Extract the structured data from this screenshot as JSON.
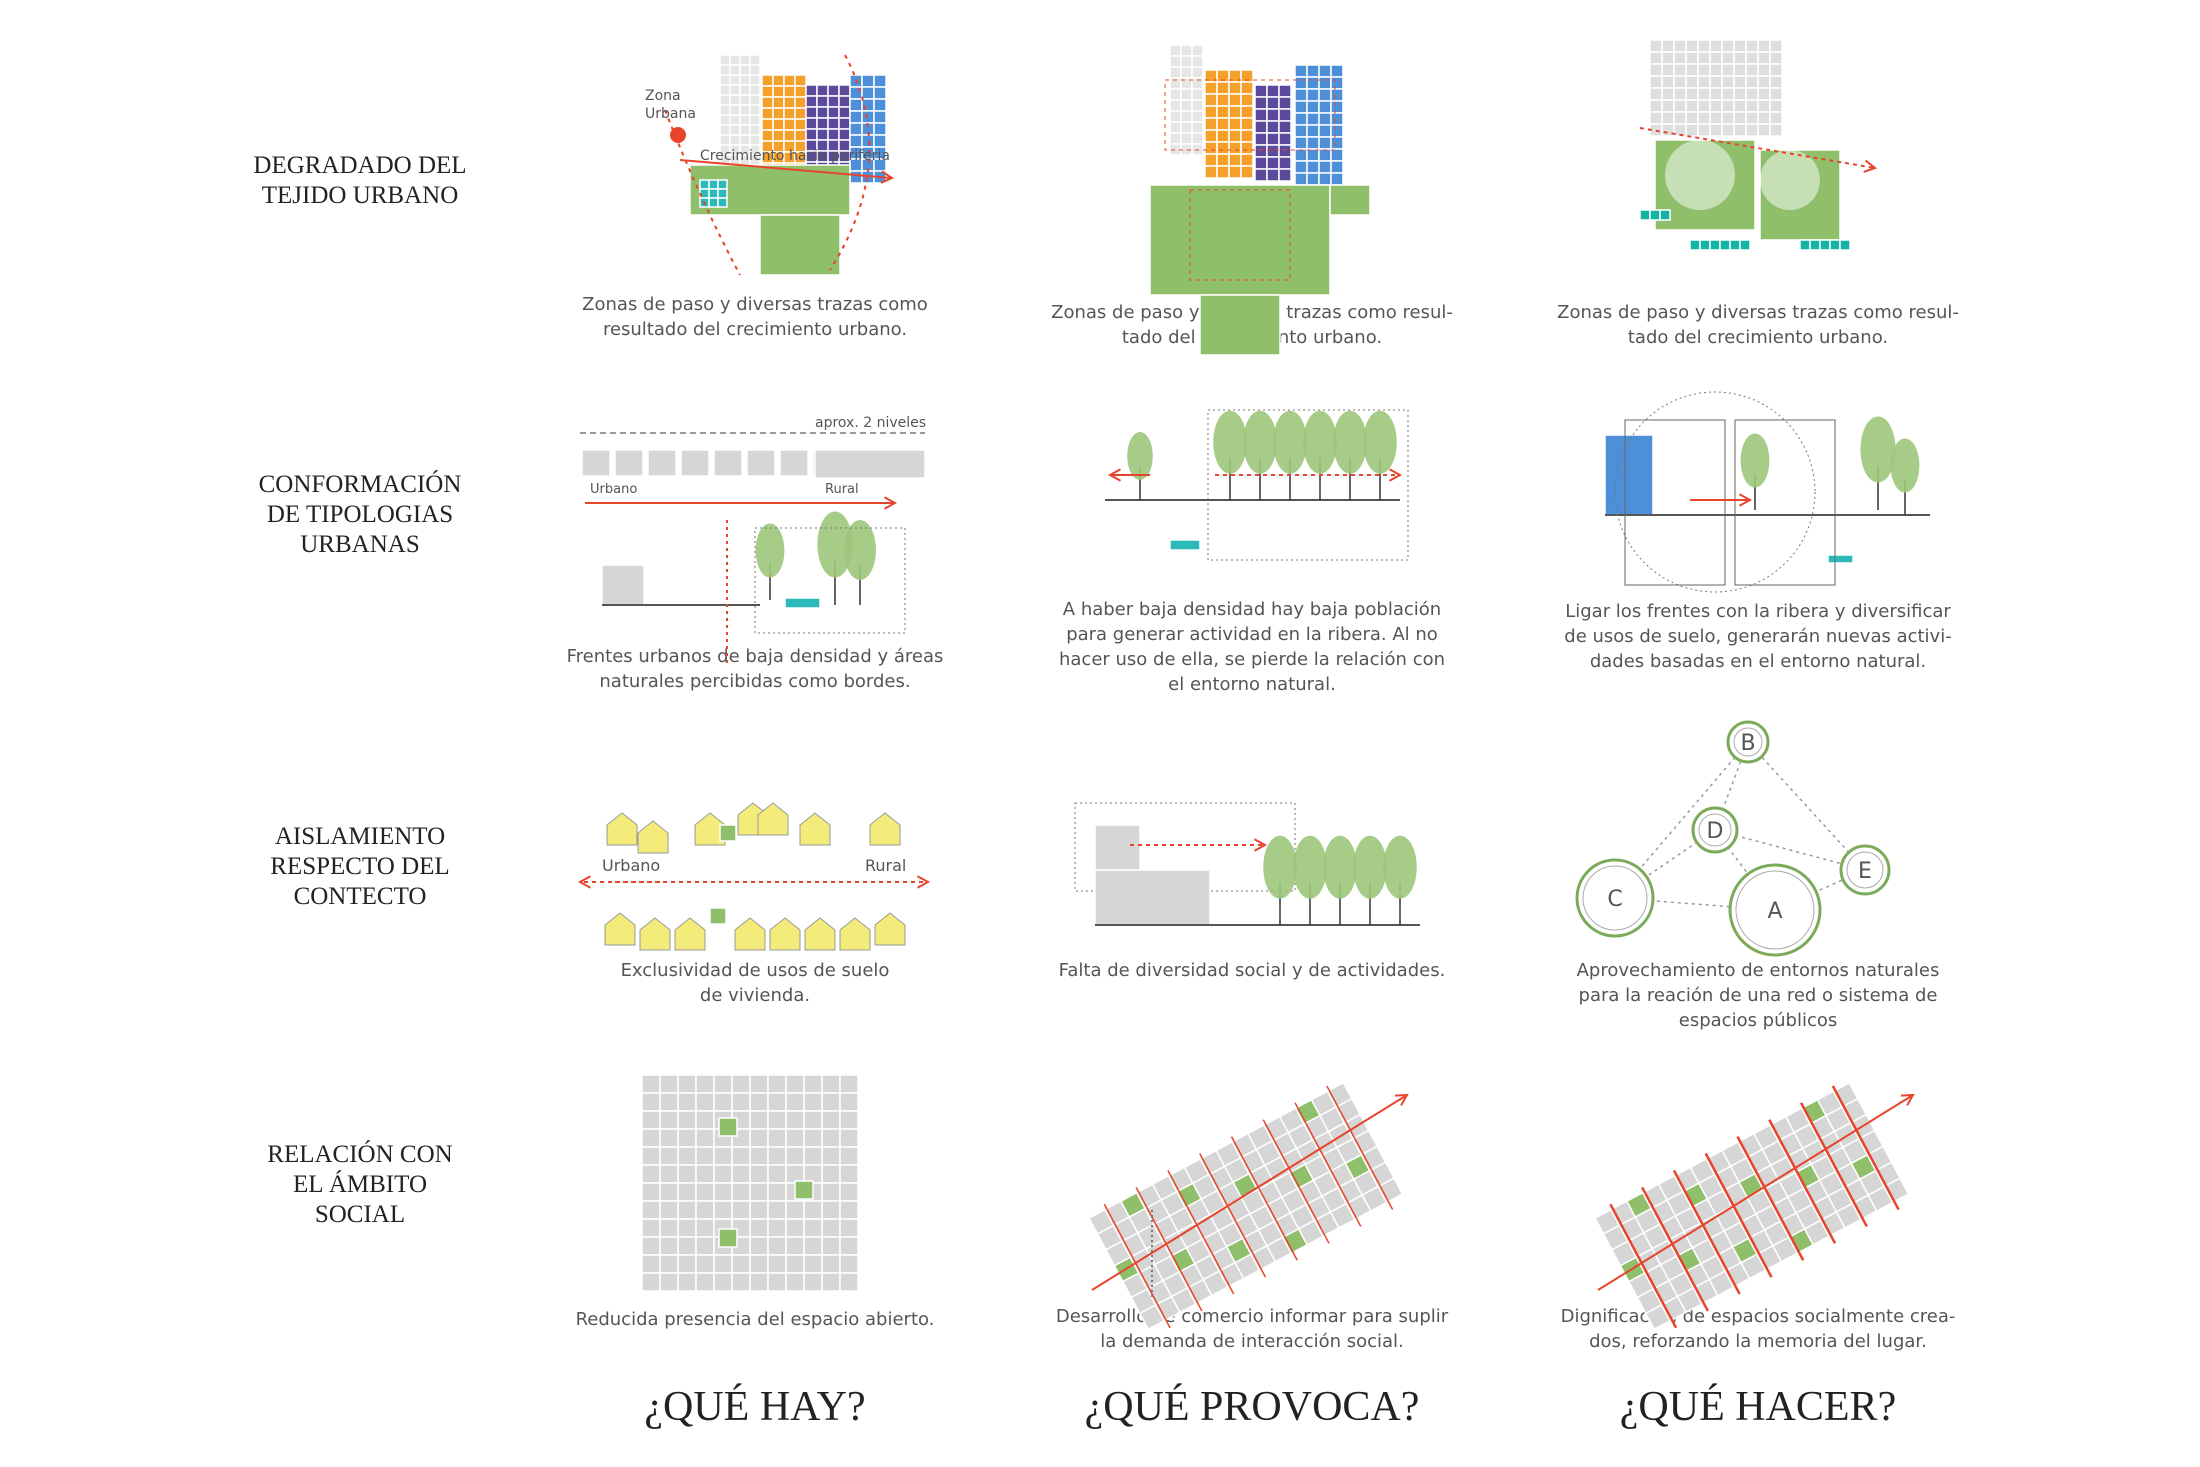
{
  "row_labels": [
    [
      "DEGRADADO DEL",
      "TEJIDO URBANO"
    ],
    [
      "CONFORMACIÓN",
      "DE TIPOLOGIAS",
      "URBANAS"
    ],
    [
      "AISLAMIENTO",
      "RESPECTO DEL",
      "CONTECTO"
    ],
    [
      "RELACIÓN CON",
      "EL ÁMBITO",
      "SOCIAL"
    ]
  ],
  "captions": [
    [
      [
        "Zonas de paso y diversas trazas como",
        "resultado del crecimiento urbano."
      ],
      [
        "Zonas de paso y diversas trazas como resul-",
        "tado del crecimiento urbano."
      ],
      [
        "Zonas de paso y diversas trazas como resul-",
        "tado del crecimiento urbano."
      ]
    ],
    [
      [
        "Frentes urbanos de baja densidad y áreas",
        "naturales percibidas como bordes."
      ],
      [
        "A haber baja densidad hay baja población",
        "para generar actividad en la ribera. Al no",
        "hacer uso de ella, se pierde la relación con",
        "el entorno natural."
      ],
      [
        "Ligar los frentes con la ribera y diversificar",
        "de usos de suelo, generarán nuevas activi-",
        "dades basadas en el entorno natural."
      ]
    ],
    [
      [
        "Exclusividad de usos de suelo",
        "de vivienda."
      ],
      [
        "Falta de diversidad social y de actividades."
      ],
      [
        "Aprovechamiento de entornos naturales",
        "para la reación de una red o sistema de",
        "espacios públicos"
      ]
    ],
    [
      [
        "Reducida presencia del espacio abierto."
      ],
      [
        "Desarrollo de comercio informar para suplir",
        "la demanda de interacción social."
      ],
      [
        "Dignificación de espacios socialmente crea-",
        "dos, reforzando la memoria del lugar."
      ]
    ]
  ],
  "column_headers": [
    "¿QUÉ HAY?",
    "¿QUÉ PROVOCA?",
    "¿QUÉ HACER?"
  ],
  "diagram_labels": {
    "zona_urbana": [
      "Zona",
      "Urbana"
    ],
    "crecimiento": "Crecimiento hacia periferia",
    "niveles": "aprox. 2 niveles",
    "urbano_1": "Urbano",
    "rural_1": "Rural",
    "urbano_2": "Urbano",
    "rural_2": "Rural",
    "nodes": [
      "B",
      "D",
      "E",
      "C",
      "A"
    ]
  }
}
